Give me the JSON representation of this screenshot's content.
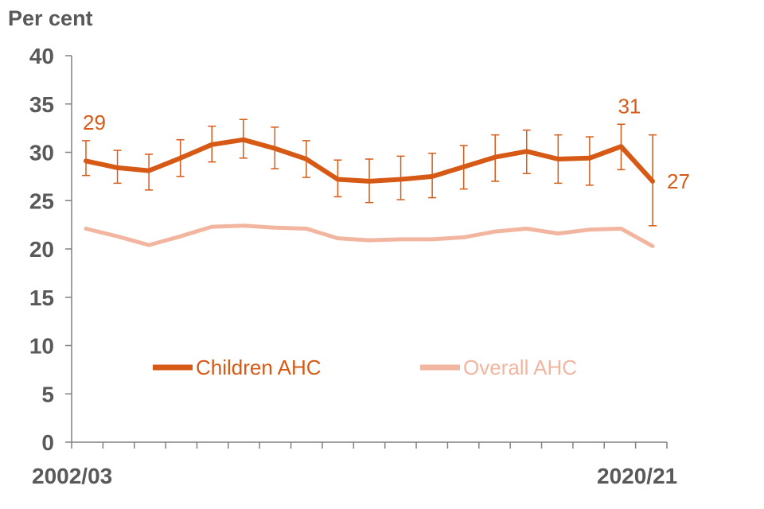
{
  "chart_data": {
    "type": "line",
    "ylabel": "Per cent",
    "ylim": [
      0,
      40
    ],
    "yticks": [
      "0",
      "5",
      "10",
      "15",
      "20",
      "25",
      "30",
      "35",
      "40"
    ],
    "x_tick_labels": [
      "2002/03",
      "2020/21"
    ],
    "grid": false,
    "legend_position": "center",
    "colors": {
      "children": "#d65a16",
      "overall": "#f2b6a0",
      "axis": "#808080"
    },
    "series": [
      {
        "name": "Children AHC",
        "values": [
          29.1,
          28.4,
          28.1,
          29.4,
          30.8,
          31.3,
          30.4,
          29.3,
          27.2,
          27.0,
          27.2,
          27.5,
          28.5,
          29.5,
          30.1,
          29.3,
          29.4,
          30.6,
          27.0
        ],
        "ci_low": [
          27.6,
          26.8,
          26.1,
          27.5,
          29.0,
          29.4,
          28.3,
          27.4,
          25.4,
          24.8,
          25.1,
          25.3,
          26.2,
          27.0,
          27.8,
          26.8,
          26.6,
          28.2,
          22.4
        ],
        "ci_high": [
          31.2,
          30.2,
          29.8,
          31.3,
          32.7,
          33.4,
          32.6,
          31.2,
          29.2,
          29.3,
          29.6,
          29.9,
          30.7,
          31.8,
          32.3,
          31.8,
          31.6,
          32.9,
          31.8
        ]
      },
      {
        "name": "Overall AHC",
        "values": [
          22.1,
          21.3,
          20.4,
          21.3,
          22.3,
          22.4,
          22.2,
          22.1,
          21.1,
          20.9,
          21.0,
          21.0,
          21.2,
          21.8,
          22.1,
          21.6,
          22.0,
          22.1,
          20.3
        ]
      }
    ],
    "annotations": [
      {
        "text": "29",
        "point": 0
      },
      {
        "text": "31",
        "point": 17
      },
      {
        "text": "27",
        "point": 18
      }
    ]
  }
}
